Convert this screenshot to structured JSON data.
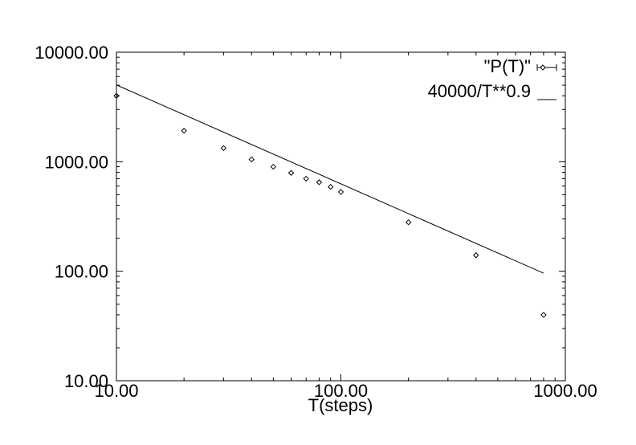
{
  "chart_data": {
    "type": "scatter",
    "title": "",
    "xlabel": "T(steps)",
    "ylabel": "",
    "xscale": "log",
    "yscale": "log",
    "xlim": [
      10,
      1000
    ],
    "ylim": [
      10,
      10000
    ],
    "x_tick_labels": [
      "10.00",
      "100.00",
      "1000.00"
    ],
    "x_tick_values": [
      10,
      100,
      1000
    ],
    "y_tick_labels": [
      "10.00",
      "100.00",
      "1000.00",
      "10000.00"
    ],
    "y_tick_values": [
      10,
      100,
      1000,
      10000
    ],
    "grid": false,
    "legend_position": "top-right",
    "series": [
      {
        "name": "\"P(T)\"",
        "kind": "points",
        "marker": "diamond",
        "x": [
          10,
          20,
          30,
          40,
          50,
          60,
          70,
          80,
          90,
          100,
          200,
          400,
          800
        ],
        "y": [
          4000,
          1920,
          1330,
          1050,
          900,
          790,
          700,
          650,
          590,
          530,
          280,
          140,
          40
        ]
      },
      {
        "name": "40000/T**0.9",
        "kind": "line",
        "x": [
          10,
          800
        ],
        "y": [
          5024,
          96
        ]
      }
    ]
  }
}
